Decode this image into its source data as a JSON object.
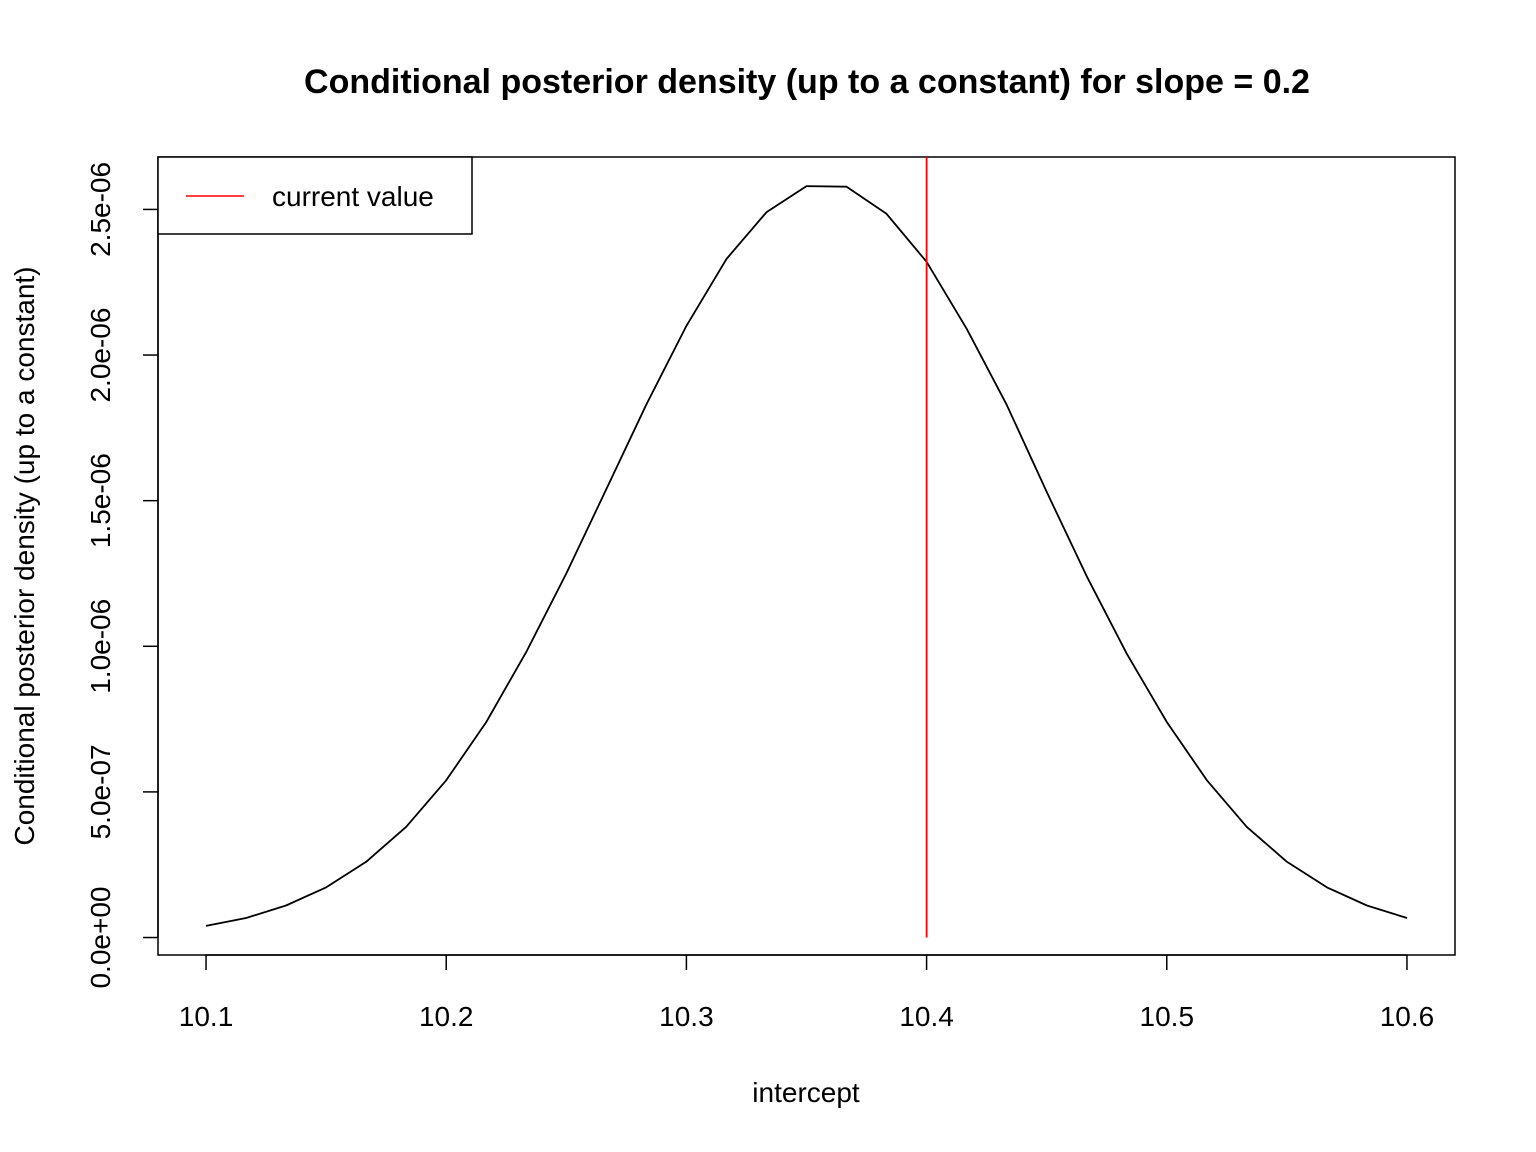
{
  "chart_data": {
    "type": "line",
    "title": "Conditional posterior density (up to a constant) for slope = 0.2",
    "xlabel": "intercept",
    "ylabel": "Conditional posterior density (up to a constant)",
    "xlim": [
      10.08,
      10.62
    ],
    "ylim": [
      -6e-08,
      2.68e-06
    ],
    "x_ticks": [
      10.1,
      10.2,
      10.3,
      10.4,
      10.5,
      10.6
    ],
    "x_tick_labels": [
      "10.1",
      "10.2",
      "10.3",
      "10.4",
      "10.5",
      "10.6"
    ],
    "y_ticks": [
      0,
      5e-07,
      1e-06,
      1.5e-06,
      2e-06,
      2.5e-06
    ],
    "y_tick_labels": [
      "0.0e+00",
      "5.0e-07",
      "1.0e-06",
      "1.5e-06",
      "2.0e-06",
      "2.5e-06"
    ],
    "grid": false,
    "legend": {
      "position": "top-left",
      "entries": [
        {
          "label": "current value",
          "color": "#ff0000"
        }
      ]
    },
    "series": [
      {
        "color": "#000000",
        "x": [
          10.1,
          10.1167,
          10.1333,
          10.15,
          10.1667,
          10.1833,
          10.2,
          10.2167,
          10.2333,
          10.25,
          10.2667,
          10.2833,
          10.3,
          10.3167,
          10.3333,
          10.35,
          10.3667,
          10.3833,
          10.4,
          10.4167,
          10.4333,
          10.45,
          10.4667,
          10.4833,
          10.5,
          10.5167,
          10.5333,
          10.55,
          10.5667,
          10.5833,
          10.6
        ],
        "values": [
          4e-08,
          6.7e-08,
          1.1e-07,
          1.72e-07,
          2.6e-07,
          3.8e-07,
          5.4e-07,
          7.4e-07,
          9.8e-07,
          1.25e-06,
          1.54e-06,
          1.83e-06,
          2.1e-06,
          2.33e-06,
          2.49e-06,
          2.58e-06,
          2.578e-06,
          2.485e-06,
          2.32e-06,
          2.09e-06,
          1.83e-06,
          1.53e-06,
          1.24e-06,
          9.75e-07,
          7.4e-07,
          5.4e-07,
          3.8e-07,
          2.6e-07,
          1.72e-07,
          1.1e-07,
          6.7e-08
        ]
      }
    ],
    "vline": {
      "x": 10.4,
      "y_from": 0,
      "y_to_top": true,
      "color": "#ff0000",
      "legend_entry": "current value"
    }
  }
}
